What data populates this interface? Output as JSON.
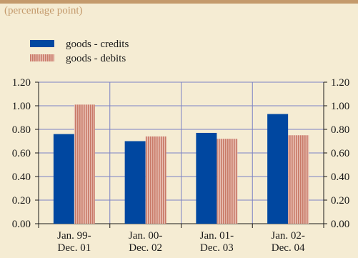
{
  "subtitle": "(percentage point)",
  "colors": {
    "background": "#f5ecd3",
    "accent": "#c49a6c",
    "credits": "#0047a0",
    "debits_base": "#c97a68",
    "debits_stripe": "#e8c0b4",
    "grid": "#7b82c4"
  },
  "chart_data": {
    "type": "bar",
    "categories": [
      [
        "Jan. 99-",
        "Dec. 01"
      ],
      [
        "Jan. 00-",
        "Dec. 02"
      ],
      [
        "Jan. 01-",
        "Dec. 03"
      ],
      [
        "Jan. 02-",
        "Dec. 04"
      ]
    ],
    "series": [
      {
        "name": "goods - credits",
        "values": [
          0.76,
          0.7,
          0.77,
          0.93
        ],
        "pattern": "solid"
      },
      {
        "name": "goods - debits",
        "values": [
          1.01,
          0.74,
          0.72,
          0.75
        ],
        "pattern": "vertical-stripes"
      }
    ],
    "ylim": [
      0,
      1.2
    ],
    "yticks": [
      "0.00",
      "0.20",
      "0.40",
      "0.60",
      "0.80",
      "1.00",
      "1.20"
    ],
    "ytick_values": [
      0,
      0.2,
      0.4,
      0.6,
      0.8,
      1.0,
      1.2
    ],
    "grid": true,
    "legend_position": "top-left",
    "right_axis_mirror": true
  }
}
